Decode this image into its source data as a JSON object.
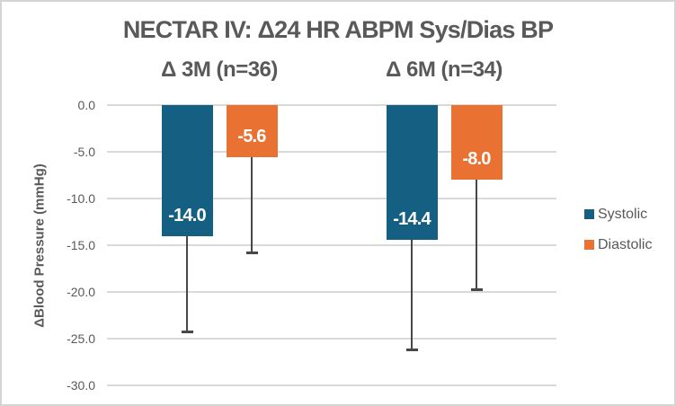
{
  "colors": {
    "systolic": "#156082",
    "diastolic": "#E97132",
    "gridline": "#D9D9D9",
    "error_bar": "#474747",
    "title_text": "#595959",
    "tick_text": "#595959",
    "data_label_text": "#FFFFFF",
    "frame_border": "#D5D5D5",
    "background": "#FFFFFF"
  },
  "chart_data": {
    "type": "bar",
    "title": "NECTAR IV: Δ24 HR ABPM Sys/Dias BP",
    "categories": [
      "Δ 3M (n=36)",
      "Δ 6M (n=34)"
    ],
    "series": [
      {
        "name": "Systolic",
        "color": "#156082",
        "values": [
          -14.0,
          -14.4
        ],
        "labels": [
          "-14.0",
          "-14.4"
        ],
        "error_tips": [
          -24.2,
          -26.2
        ]
      },
      {
        "name": "Diastolic",
        "color": "#E97132",
        "values": [
          -5.6,
          -8.0
        ],
        "labels": [
          "-5.6",
          "-8.0"
        ],
        "error_tips": [
          -15.8,
          -19.7
        ]
      }
    ],
    "ylabel": "ΔBlood Pressure (mmHg)",
    "ylim": [
      -30,
      0
    ],
    "ytick_step": 5,
    "yticks": [
      "0.0",
      "-5.0",
      "-10.0",
      "-15.0",
      "-20.0",
      "-25.0",
      "-30.0"
    ],
    "grid": true,
    "error_bars": "lower-only",
    "legend_position": "right"
  }
}
